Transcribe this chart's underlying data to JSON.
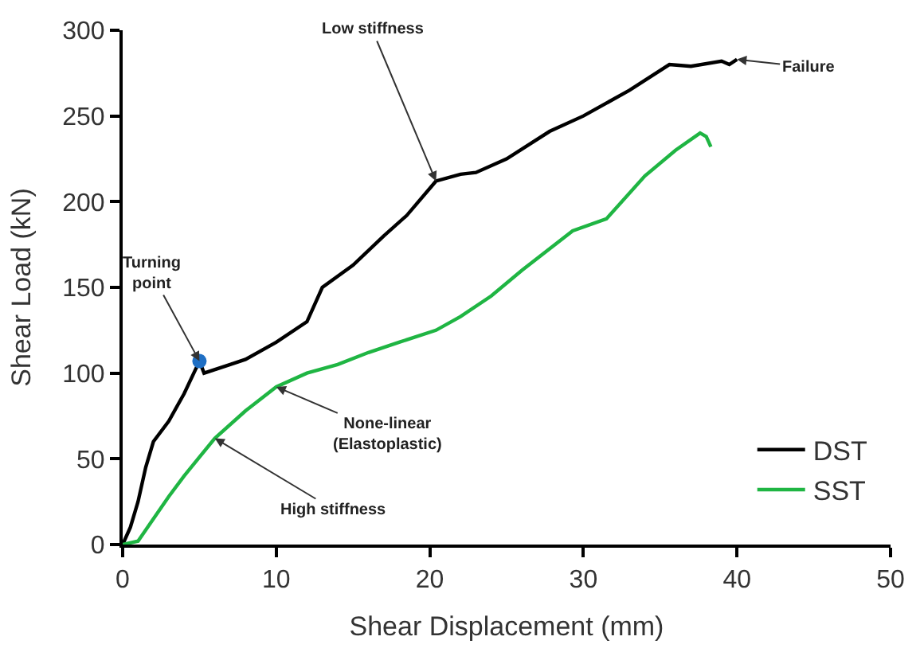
{
  "chart_data": {
    "type": "line",
    "xlabel": "Shear Displacement (mm)",
    "ylabel": "Shear Load (kN)",
    "xlim": [
      0,
      50
    ],
    "xticks": [
      0,
      10,
      20,
      30,
      40,
      50
    ],
    "ylim": [
      0,
      300
    ],
    "yticks": [
      0,
      50,
      100,
      150,
      200,
      250,
      300
    ],
    "legend": "bottom right",
    "marker": "none",
    "line_style": "solid",
    "series": [
      {
        "name": "DST",
        "color": "#000000",
        "x": [
          0,
          0.5,
          1,
          1.5,
          2,
          3,
          4,
          5,
          5.3,
          7,
          8,
          10,
          12,
          13,
          15,
          17,
          18.5,
          20.4,
          22,
          23,
          25,
          27.8,
          30,
          33,
          35.6,
          37,
          39,
          39.5,
          40
        ],
        "values": [
          0,
          10,
          25,
          45,
          60,
          72,
          88,
          107,
          100,
          105,
          108,
          118,
          130,
          150,
          163,
          180,
          192,
          212,
          216,
          217,
          225,
          241,
          250,
          265,
          280,
          279,
          282,
          280,
          283
        ]
      },
      {
        "name": "SST",
        "color": "#1fb543",
        "x": [
          0,
          1,
          2,
          3,
          4,
          6,
          8,
          10,
          12,
          14,
          16,
          18,
          20.4,
          22,
          24,
          26,
          29.3,
          31.5,
          34,
          36,
          37.6,
          38,
          38.3
        ],
        "values": [
          0,
          2,
          15,
          28,
          40,
          62,
          78,
          92,
          100,
          105,
          112,
          118,
          125,
          133,
          145,
          160,
          183,
          190,
          215,
          230,
          240,
          238,
          232
        ]
      },
      {
        "type": "scatter",
        "marker": "circle",
        "color": "#1f6fc4",
        "x": [
          5
        ],
        "values": [
          107
        ]
      }
    ],
    "annotations": [
      {
        "text": "Turning point",
        "x": 5,
        "y": 107
      },
      {
        "text": "Low stiffness",
        "x": 20.4,
        "y": 212
      },
      {
        "text": "Failure",
        "x": 40,
        "y": 283
      },
      {
        "text": "None-linear (Elastoplastic)",
        "x": 10,
        "y": 92
      },
      {
        "text": "High stiffness",
        "x": 6,
        "y": 62
      }
    ]
  }
}
